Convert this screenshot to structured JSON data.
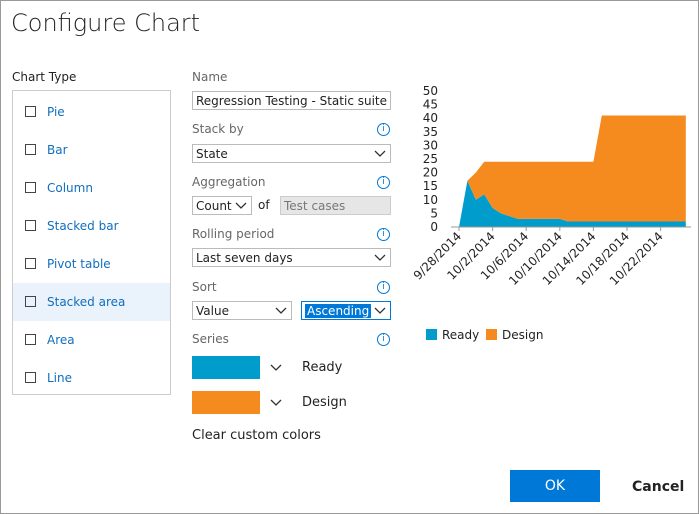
{
  "dialog": {
    "title": "Configure Chart"
  },
  "chart_type": {
    "label": "Chart Type",
    "items": [
      "Pie",
      "Bar",
      "Column",
      "Stacked bar",
      "Pivot table",
      "Stacked area",
      "Area",
      "Line"
    ]
  },
  "form": {
    "name": {
      "label": "Name",
      "value": "Regression Testing - Static suite - Ch"
    },
    "stack_by": {
      "label": "Stack by",
      "value": "State"
    },
    "aggregation": {
      "label": "Aggregation",
      "function": "Count",
      "of": "of",
      "field": "Test cases"
    },
    "rolling_period": {
      "label": "Rolling period",
      "value": "Last seven days"
    },
    "sort": {
      "label": "Sort",
      "field": "Value",
      "order": "Ascending"
    },
    "series": {
      "label": "Series"
    },
    "clear": "Clear custom colors"
  },
  "buttons": {
    "ok": "OK",
    "cancel": "Cancel"
  },
  "chart_data": {
    "type": "stacked_area",
    "categories": [
      "9/28/2014",
      null,
      null,
      null,
      "10/2/2014",
      null,
      null,
      null,
      "10/6/2014",
      null,
      null,
      null,
      "10/10/2014",
      null,
      null,
      null,
      "10/14/2014",
      null,
      null,
      null,
      "10/18/2014",
      null,
      null,
      null,
      "10/22/2014",
      null,
      null,
      null
    ],
    "series": [
      {
        "name": "Ready",
        "color": "#009ccc",
        "values": [
          0,
          17,
          10,
          12,
          7,
          5,
          4,
          3,
          3,
          3,
          3,
          3,
          3,
          2,
          2,
          2,
          2,
          2,
          2,
          2,
          2,
          2,
          2,
          2,
          2,
          2,
          2,
          2
        ]
      },
      {
        "name": "Design",
        "color": "#f58b1f",
        "values": [
          0,
          0,
          10,
          12,
          17,
          19,
          20,
          21,
          21,
          21,
          21,
          21,
          21,
          22,
          22,
          22,
          22,
          39,
          39,
          39,
          39,
          39,
          39,
          39,
          39,
          39,
          39,
          39
        ]
      }
    ],
    "ylim": [
      0,
      50
    ],
    "yticks": [
      0,
      5,
      10,
      15,
      20,
      25,
      30,
      35,
      40,
      45,
      50
    ]
  }
}
